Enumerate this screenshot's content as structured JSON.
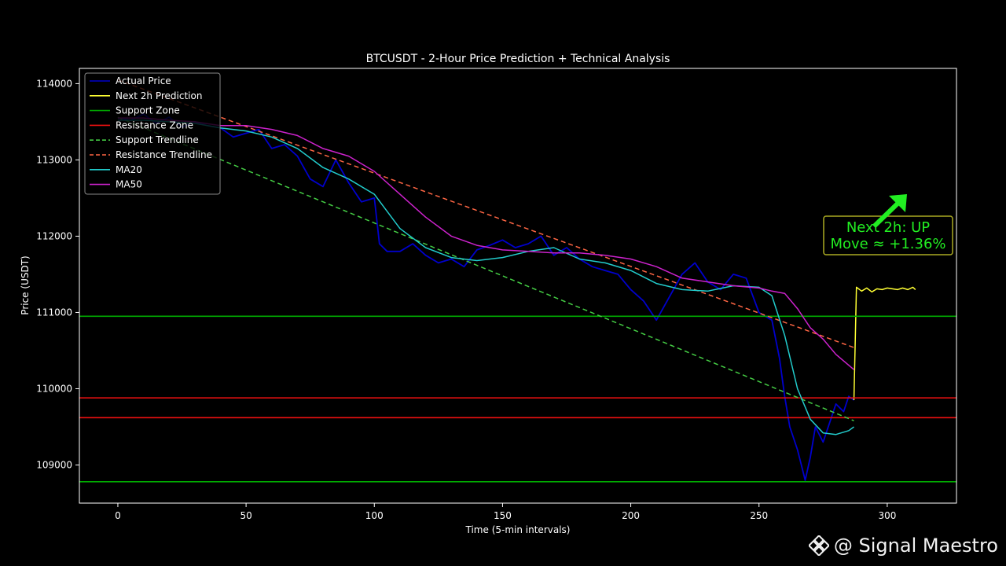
{
  "chart_data": {
    "type": "line",
    "title": "BTCUSDT - 2-Hour Price Prediction + Technical Analysis",
    "xlabel": "Time (5-min intervals)",
    "ylabel": "Price (USDT)",
    "xlim": [
      -15,
      327
    ],
    "ylim": [
      108500,
      114200
    ],
    "xticks": [
      0,
      50,
      100,
      150,
      200,
      250,
      300
    ],
    "yticks": [
      109000,
      110000,
      111000,
      112000,
      113000,
      114000
    ],
    "xtick_labels": [
      "0",
      "50",
      "100",
      "150",
      "200",
      "250",
      "300"
    ],
    "ytick_labels": [
      "109000",
      "110000",
      "111000",
      "112000",
      "113000",
      "114000"
    ],
    "grid": false,
    "legend_position": "top-left",
    "series": [
      {
        "name": "Actual Price",
        "color": "#0000cc",
        "style": "solid",
        "x": [
          0,
          5,
          10,
          15,
          20,
          25,
          30,
          35,
          40,
          45,
          50,
          55,
          60,
          65,
          70,
          75,
          80,
          85,
          90,
          95,
          100,
          102,
          105,
          110,
          115,
          120,
          125,
          130,
          135,
          140,
          145,
          150,
          155,
          160,
          165,
          170,
          175,
          180,
          185,
          190,
          195,
          200,
          205,
          210,
          215,
          220,
          225,
          230,
          235,
          240,
          245,
          250,
          255,
          258,
          260,
          262,
          265,
          268,
          270,
          272,
          275,
          278,
          280,
          283,
          285,
          287
        ],
        "y": [
          113550,
          113520,
          113600,
          113480,
          113560,
          113430,
          113500,
          113450,
          113420,
          113300,
          113350,
          113400,
          113150,
          113200,
          113050,
          112750,
          112650,
          113000,
          112700,
          112450,
          112500,
          111900,
          111800,
          111800,
          111900,
          111750,
          111650,
          111700,
          111600,
          111820,
          111880,
          111950,
          111850,
          111900,
          112000,
          111750,
          111850,
          111700,
          111600,
          111550,
          111500,
          111300,
          111150,
          110900,
          111200,
          111500,
          111650,
          111400,
          111300,
          111500,
          111450,
          111000,
          110900,
          110400,
          109900,
          109500,
          109200,
          108800,
          109100,
          109500,
          109300,
          109600,
          109800,
          109700,
          109900,
          109850
        ]
      },
      {
        "name": "Next 2h Prediction",
        "color": "#ffff33",
        "style": "solid",
        "x": [
          287,
          288,
          290,
          292,
          294,
          296,
          298,
          300,
          302,
          304,
          306,
          308,
          310,
          311
        ],
        "y": [
          109850,
          111330,
          111280,
          111320,
          111270,
          111310,
          111300,
          111320,
          111310,
          111300,
          111320,
          111300,
          111330,
          111300
        ]
      },
      {
        "name": "Support Zone",
        "color": "#00aa00",
        "style": "solid",
        "hlines": [
          110950,
          108780
        ]
      },
      {
        "name": "Resistance Zone",
        "color": "#ee1111",
        "style": "solid",
        "hlines": [
          109880,
          109620
        ]
      },
      {
        "name": "Support Trendline",
        "color": "#44cc44",
        "style": "dashed",
        "x": [
          0,
          287
        ],
        "y": [
          113560,
          109580
        ]
      },
      {
        "name": "Resistance Trendline",
        "color": "#ff6644",
        "style": "dashed",
        "x": [
          0,
          287
        ],
        "y": [
          114050,
          110540
        ]
      },
      {
        "name": "MA20",
        "color": "#22cccc",
        "style": "solid",
        "x": [
          0,
          10,
          20,
          30,
          40,
          50,
          60,
          70,
          80,
          90,
          100,
          110,
          120,
          130,
          140,
          150,
          160,
          170,
          180,
          190,
          200,
          210,
          220,
          230,
          240,
          250,
          255,
          260,
          265,
          270,
          275,
          280,
          285,
          287
        ],
        "y": [
          113520,
          113520,
          113500,
          113480,
          113420,
          113380,
          113300,
          113150,
          112900,
          112750,
          112550,
          112100,
          111850,
          111720,
          111680,
          111720,
          111800,
          111850,
          111700,
          111650,
          111550,
          111380,
          111300,
          111280,
          111350,
          111330,
          111220,
          110700,
          110000,
          109600,
          109420,
          109400,
          109450,
          109500
        ]
      },
      {
        "name": "MA50",
        "color": "#cc22cc",
        "style": "solid",
        "x": [
          0,
          10,
          20,
          30,
          40,
          50,
          60,
          70,
          80,
          90,
          100,
          110,
          120,
          130,
          140,
          150,
          160,
          170,
          180,
          190,
          200,
          210,
          220,
          230,
          240,
          250,
          255,
          260,
          265,
          270,
          275,
          280,
          287
        ],
        "y": [
          113550,
          113550,
          113520,
          113500,
          113450,
          113450,
          113400,
          113320,
          113150,
          113050,
          112850,
          112550,
          112250,
          112000,
          111880,
          111820,
          111800,
          111780,
          111780,
          111750,
          111700,
          111600,
          111450,
          111400,
          111350,
          111320,
          111280,
          111250,
          111050,
          110800,
          110650,
          110450,
          110250
        ]
      }
    ],
    "annotation": {
      "line1": "Next 2h: UP",
      "line2": "Move ≈ +1.36%",
      "color": "#22ee22",
      "box_edge": "#aaaa22",
      "arrow_color": "#22ee22"
    }
  },
  "watermark": {
    "text": "@ Signal Maestro",
    "icon": "binance-diamond-icon"
  }
}
